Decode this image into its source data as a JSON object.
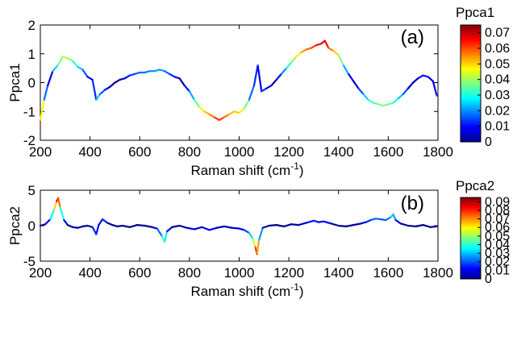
{
  "chart_data": [
    {
      "type": "line",
      "panel_label": "(a)",
      "ylabel": "Ppca1",
      "xlabel": "Raman shift (cm",
      "xlabel_sup": "-1",
      "xlabel_close": ")",
      "xlim": [
        200,
        1800
      ],
      "ylim": [
        -2,
        2
      ],
      "x_ticks": [
        "200",
        "400",
        "600",
        "800",
        "1000",
        "1200",
        "1400",
        "1600",
        "1800"
      ],
      "y_ticks": [
        "2",
        "1",
        "0",
        "-1",
        "-2"
      ],
      "x_tick_values": [
        200,
        400,
        600,
        800,
        1000,
        1200,
        1400,
        1600,
        1800
      ],
      "y_tick_values": [
        2,
        1,
        0,
        -1,
        -2
      ],
      "colorbar": {
        "title": "Ppca1",
        "range": [
          0,
          0.075
        ],
        "ticks": [
          "0.07",
          "0.06",
          "0.05",
          "0.04",
          "0.03",
          "0.02",
          "0.01",
          "0"
        ],
        "tick_values": [
          0.07,
          0.06,
          0.05,
          0.04,
          0.03,
          0.02,
          0.01,
          0
        ],
        "colormap": "jet"
      },
      "series": [
        {
          "x": [
            200,
            215,
            230,
            250,
            270,
            290,
            310,
            330,
            350,
            370,
            390,
            410,
            425,
            440,
            460,
            480,
            500,
            520,
            540,
            560,
            580,
            600,
            620,
            640,
            660,
            680,
            700,
            720,
            740,
            760,
            780,
            800,
            820,
            840,
            860,
            880,
            900,
            920,
            940,
            960,
            980,
            1000,
            1020,
            1040,
            1060,
            1075,
            1090,
            1110,
            1130,
            1150,
            1170,
            1190,
            1210,
            1230,
            1250,
            1270,
            1290,
            1310,
            1330,
            1345,
            1360,
            1380,
            1400,
            1420,
            1440,
            1460,
            1480,
            1500,
            1520,
            1540,
            1560,
            1580,
            1600,
            1620,
            1640,
            1660,
            1680,
            1700,
            1720,
            1740,
            1760,
            1780,
            1795
          ],
          "y": [
            -1.3,
            -0.6,
            -0.1,
            0.4,
            0.6,
            0.9,
            0.85,
            0.75,
            0.55,
            0.45,
            0.2,
            0.1,
            -0.6,
            -0.4,
            -0.25,
            -0.15,
            0.0,
            0.1,
            0.15,
            0.25,
            0.3,
            0.35,
            0.35,
            0.4,
            0.4,
            0.45,
            0.4,
            0.3,
            0.2,
            0.15,
            -0.1,
            -0.3,
            -0.6,
            -0.85,
            -1.0,
            -1.1,
            -1.2,
            -1.3,
            -1.2,
            -1.1,
            -1.0,
            -1.05,
            -0.9,
            -0.6,
            -0.1,
            0.6,
            -0.3,
            -0.2,
            -0.1,
            0.1,
            0.3,
            0.5,
            0.7,
            0.9,
            1.05,
            1.15,
            1.2,
            1.3,
            1.35,
            1.45,
            1.2,
            1.1,
            0.95,
            0.6,
            0.3,
            0.05,
            -0.2,
            -0.4,
            -0.6,
            -0.7,
            -0.75,
            -0.8,
            -0.75,
            -0.7,
            -0.55,
            -0.4,
            -0.2,
            0.0,
            0.15,
            0.25,
            0.2,
            0.05,
            -0.45
          ]
        }
      ]
    },
    {
      "type": "line",
      "panel_label": "(b)",
      "ylabel": "Ppca2",
      "xlabel": "Raman shift (cm",
      "xlabel_sup": "-1",
      "xlabel_close": ")",
      "xlim": [
        200,
        1800
      ],
      "ylim": [
        -5,
        5
      ],
      "x_ticks": [
        "200",
        "400",
        "600",
        "800",
        "1000",
        "1200",
        "1400",
        "1600",
        "1800"
      ],
      "y_ticks": [
        "5",
        "0",
        "-5"
      ],
      "x_tick_values": [
        200,
        400,
        600,
        800,
        1000,
        1200,
        1400,
        1600,
        1800
      ],
      "y_tick_values": [
        5,
        0,
        -5
      ],
      "colorbar": {
        "title": "Ppca2",
        "range": [
          0,
          0.095
        ],
        "ticks": [
          "0.09",
          "0.08",
          "0.07",
          "0.06",
          "0.05",
          "0.04",
          "0.03",
          "0.02",
          "0.01",
          "0"
        ],
        "tick_values": [
          0.09,
          0.08,
          0.07,
          0.06,
          0.05,
          0.04,
          0.03,
          0.02,
          0.01,
          0
        ],
        "colormap": "jet"
      },
      "series": [
        {
          "x": [
            200,
            220,
            240,
            255,
            265,
            272,
            280,
            295,
            310,
            330,
            350,
            370,
            390,
            410,
            425,
            435,
            450,
            470,
            490,
            510,
            530,
            560,
            590,
            620,
            650,
            670,
            690,
            700,
            710,
            730,
            760,
            790,
            820,
            850,
            880,
            910,
            940,
            970,
            1000,
            1020,
            1040,
            1055,
            1065,
            1072,
            1080,
            1095,
            1120,
            1150,
            1180,
            1210,
            1240,
            1270,
            1300,
            1320,
            1340,
            1370,
            1400,
            1430,
            1460,
            1490,
            1510,
            1530,
            1550,
            1570,
            1590,
            1610,
            1620,
            1630,
            1650,
            1680,
            1710,
            1740,
            1770,
            1795
          ],
          "y": [
            0.0,
            0.2,
            0.9,
            2.2,
            3.4,
            3.9,
            2.6,
            0.8,
            0.1,
            -0.2,
            -0.3,
            -0.1,
            0.0,
            -0.2,
            -1.2,
            0.1,
            0.9,
            0.4,
            0.1,
            -0.1,
            0.0,
            -0.2,
            0.1,
            0.0,
            -0.2,
            -0.4,
            -1.5,
            -2.3,
            -0.8,
            -0.2,
            0.0,
            -0.3,
            -0.5,
            -0.2,
            -0.6,
            -0.3,
            -0.1,
            -0.3,
            -0.4,
            -0.6,
            -1.0,
            -1.8,
            -3.0,
            -4.0,
            -2.0,
            -0.3,
            0.0,
            0.1,
            -0.1,
            0.2,
            0.1,
            0.4,
            0.7,
            0.5,
            0.6,
            0.3,
            0.0,
            -0.1,
            0.1,
            0.3,
            0.5,
            0.8,
            1.0,
            0.9,
            0.8,
            1.2,
            1.6,
            0.8,
            0.3,
            0.0,
            -0.1,
            0.1,
            -0.2,
            -0.1
          ]
        }
      ]
    }
  ]
}
